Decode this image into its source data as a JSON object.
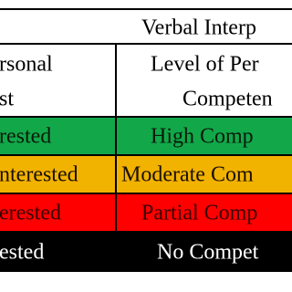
{
  "table": {
    "title": "Verbal Interp",
    "header": [
      [
        "rsonal",
        "Level of Per"
      ],
      [
        "st",
        "Competen"
      ]
    ],
    "rows": [
      [
        "rested",
        "High Comp"
      ],
      [
        "nterested",
        "Moderate Com"
      ],
      [
        "erested",
        "Partial Comp"
      ],
      [
        "ested",
        "No Compet"
      ]
    ]
  }
}
